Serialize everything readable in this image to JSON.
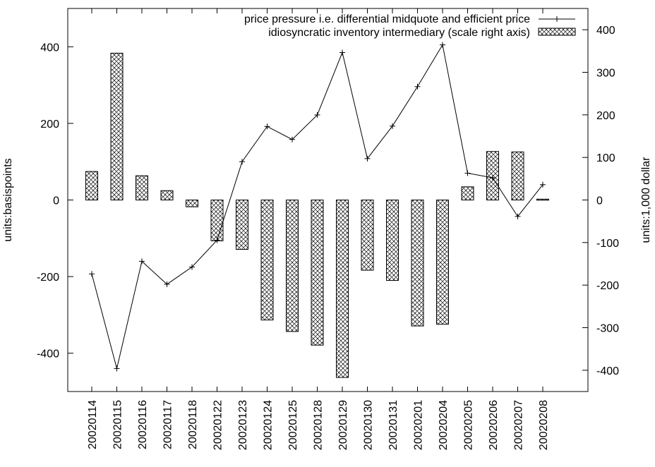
{
  "chart_data": {
    "type": "bar",
    "title": "",
    "categories": [
      "20020114",
      "20020115",
      "20020116",
      "20020117",
      "20020118",
      "20020122",
      "20020123",
      "20020124",
      "20020125",
      "20020128",
      "20020129",
      "20020130",
      "20020131",
      "20020201",
      "20020204",
      "20020205",
      "20020206",
      "20020207",
      "20020208"
    ],
    "ylabel_left": "units:basispoints",
    "ylabel_right": "units:1,000 dollar",
    "ylim_left": [
      -500,
      500
    ],
    "ylim_right": [
      -450,
      450
    ],
    "yticks_left": [
      -400,
      -200,
      0,
      200,
      400
    ],
    "yticks_right": [
      -400,
      -300,
      -200,
      -100,
      0,
      100,
      200,
      300,
      400
    ],
    "legend_position": "top-right",
    "grid": false,
    "series": [
      {
        "name": "price pressure i.e. differential midquote and efficient price",
        "type": "line",
        "axis": "left",
        "marker": "+",
        "color": "#000000",
        "values": [
          -193,
          -440,
          -160,
          -220,
          -175,
          -105,
          100,
          192,
          158,
          222,
          385,
          108,
          193,
          296,
          405,
          70,
          58,
          -43,
          40
        ]
      },
      {
        "name": "idiosyncratic inventory intermediary (scale right axis)",
        "type": "bar",
        "axis": "right",
        "pattern": "crosshatch",
        "color": "#000000",
        "values": [
          67,
          345,
          57,
          22,
          -16,
          -96,
          -116,
          -282,
          -309,
          -341,
          -417,
          -165,
          -189,
          -296,
          -292,
          31,
          114,
          113,
          2
        ]
      }
    ]
  }
}
